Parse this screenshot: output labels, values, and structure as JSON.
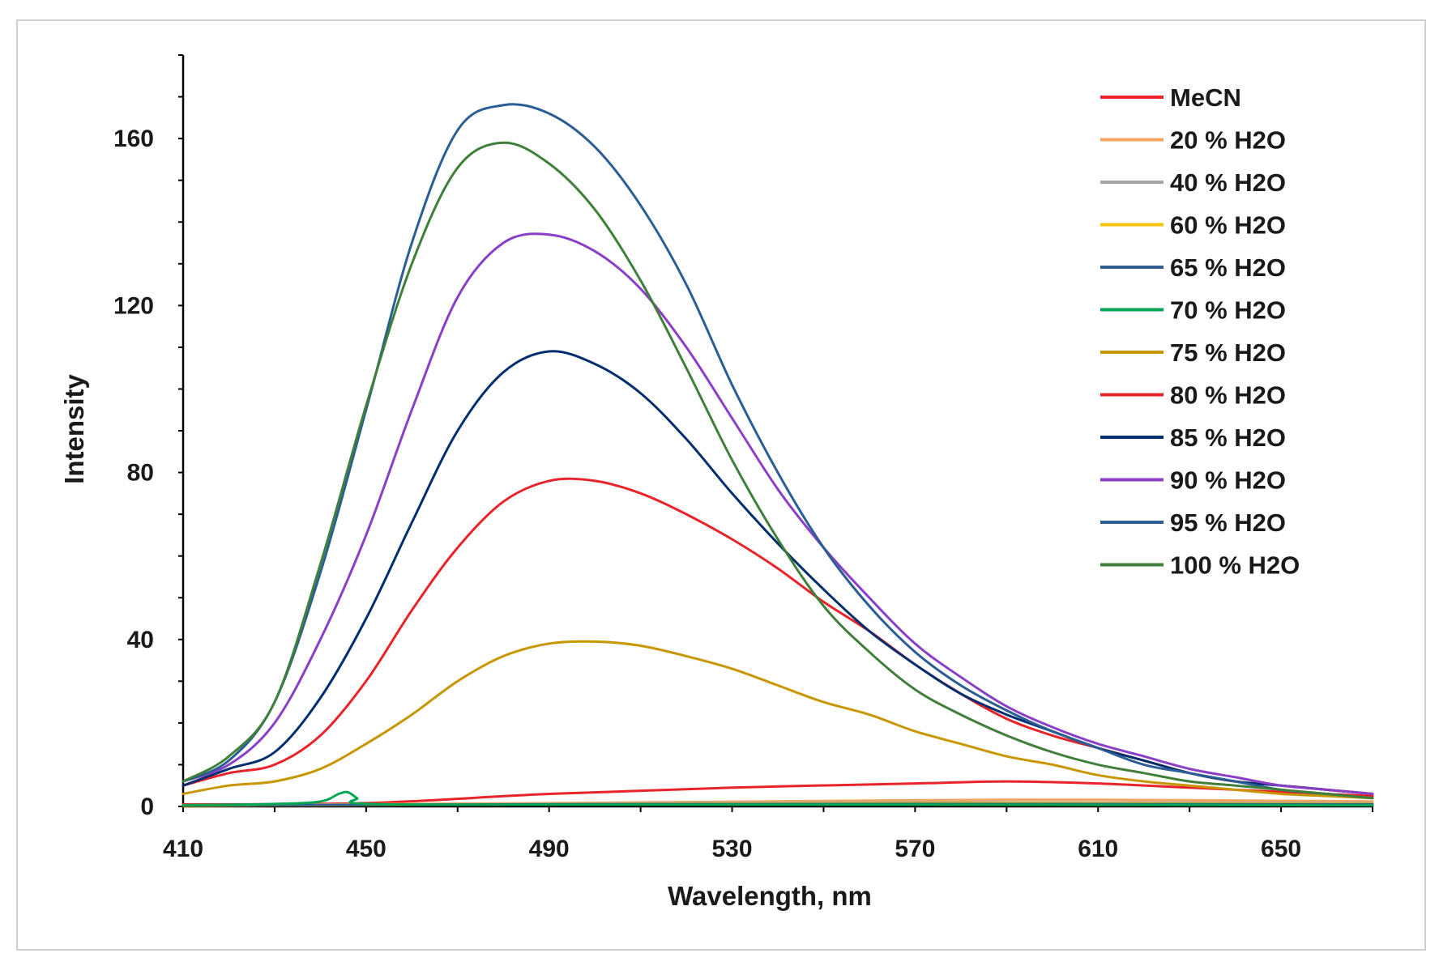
{
  "chart_data": {
    "type": "line",
    "xlabel": "Wavelength, nm",
    "ylabel": "Intensity",
    "xlim": [
      410,
      670
    ],
    "ylim": [
      0,
      180
    ],
    "x_ticks": [
      410,
      450,
      490,
      530,
      570,
      610,
      650
    ],
    "y_ticks": [
      0,
      40,
      80,
      120,
      160
    ],
    "grid": false,
    "legend_position": "top-right",
    "series": [
      {
        "name": "MeCN",
        "color": "#e8232a",
        "points": [
          [
            410,
            0.5
          ],
          [
            450,
            0.8
          ],
          [
            490,
            3
          ],
          [
            530,
            4.5
          ],
          [
            570,
            5.5
          ],
          [
            590,
            6
          ],
          [
            610,
            5.5
          ],
          [
            630,
            4.5
          ],
          [
            650,
            3.5
          ],
          [
            670,
            2.5
          ]
        ]
      },
      {
        "name": "20 % H2O",
        "color": "#f4a460",
        "points": [
          [
            410,
            0.3
          ],
          [
            490,
            0.8
          ],
          [
            570,
            1.5
          ],
          [
            610,
            1.6
          ],
          [
            670,
            1.2
          ]
        ]
      },
      {
        "name": "40 % H2O",
        "color": "#a6a6a6",
        "points": [
          [
            410,
            0.2
          ],
          [
            490,
            0.6
          ],
          [
            570,
            1.0
          ],
          [
            670,
            0.8
          ]
        ]
      },
      {
        "name": "60 % H2O",
        "color": "#f5c400",
        "points": [
          [
            410,
            0.2
          ],
          [
            490,
            0.5
          ],
          [
            570,
            0.8
          ],
          [
            670,
            0.6
          ]
        ]
      },
      {
        "name": "65 % H2O",
        "color": "#2e5f8f",
        "points": [
          [
            410,
            0.3
          ],
          [
            490,
            0.5
          ],
          [
            570,
            0.6
          ],
          [
            670,
            0.5
          ]
        ]
      },
      {
        "name": "70 % H2O",
        "color": "#00a651",
        "points": [
          [
            410,
            0.3
          ],
          [
            430,
            0.6
          ],
          [
            440,
            1.2
          ],
          [
            444,
            3
          ],
          [
            446,
            3.4
          ],
          [
            448,
            2
          ],
          [
            450,
            0.6
          ],
          [
            490,
            0.4
          ],
          [
            570,
            0.4
          ],
          [
            670,
            0.3
          ]
        ]
      },
      {
        "name": "75 % H2O",
        "color": "#c89700",
        "points": [
          [
            410,
            3
          ],
          [
            420,
            5
          ],
          [
            430,
            6
          ],
          [
            440,
            9
          ],
          [
            450,
            15
          ],
          [
            460,
            22
          ],
          [
            470,
            30
          ],
          [
            480,
            36
          ],
          [
            490,
            39
          ],
          [
            500,
            39.5
          ],
          [
            510,
            38.5
          ],
          [
            520,
            36
          ],
          [
            530,
            33
          ],
          [
            540,
            29
          ],
          [
            550,
            25
          ],
          [
            560,
            22
          ],
          [
            570,
            18
          ],
          [
            580,
            15
          ],
          [
            590,
            12
          ],
          [
            600,
            10
          ],
          [
            610,
            7.5
          ],
          [
            620,
            6
          ],
          [
            630,
            5
          ],
          [
            640,
            4
          ],
          [
            650,
            3
          ],
          [
            660,
            2.5
          ],
          [
            670,
            2
          ]
        ]
      },
      {
        "name": "80 % H2O",
        "color": "#e8232a",
        "points": [
          [
            410,
            5
          ],
          [
            420,
            8
          ],
          [
            430,
            10
          ],
          [
            440,
            17
          ],
          [
            450,
            30
          ],
          [
            460,
            47
          ],
          [
            470,
            62
          ],
          [
            480,
            73
          ],
          [
            490,
            78
          ],
          [
            500,
            78
          ],
          [
            510,
            75
          ],
          [
            520,
            70
          ],
          [
            530,
            64
          ],
          [
            540,
            57
          ],
          [
            550,
            49
          ],
          [
            560,
            42
          ],
          [
            570,
            34
          ],
          [
            580,
            27
          ],
          [
            590,
            21
          ],
          [
            600,
            17
          ],
          [
            610,
            14
          ],
          [
            620,
            11
          ],
          [
            630,
            8
          ],
          [
            640,
            6
          ],
          [
            650,
            5
          ],
          [
            660,
            4
          ],
          [
            670,
            3
          ]
        ]
      },
      {
        "name": "85 % H2O",
        "color": "#002e6e",
        "points": [
          [
            410,
            5
          ],
          [
            420,
            9
          ],
          [
            430,
            13
          ],
          [
            440,
            26
          ],
          [
            450,
            45
          ],
          [
            460,
            68
          ],
          [
            470,
            90
          ],
          [
            480,
            104
          ],
          [
            490,
            109
          ],
          [
            500,
            106
          ],
          [
            510,
            99
          ],
          [
            520,
            88
          ],
          [
            530,
            75
          ],
          [
            540,
            63
          ],
          [
            550,
            52
          ],
          [
            560,
            42
          ],
          [
            570,
            34
          ],
          [
            580,
            27
          ],
          [
            590,
            22
          ],
          [
            600,
            18
          ],
          [
            610,
            14
          ],
          [
            620,
            11
          ],
          [
            630,
            8
          ],
          [
            640,
            6
          ],
          [
            650,
            5
          ],
          [
            660,
            4
          ],
          [
            670,
            3
          ]
        ]
      },
      {
        "name": "90 % H2O",
        "color": "#8b3fc6",
        "points": [
          [
            410,
            6
          ],
          [
            420,
            10
          ],
          [
            430,
            20
          ],
          [
            440,
            40
          ],
          [
            450,
            65
          ],
          [
            460,
            95
          ],
          [
            470,
            122
          ],
          [
            480,
            135
          ],
          [
            490,
            137
          ],
          [
            500,
            133
          ],
          [
            510,
            124
          ],
          [
            520,
            110
          ],
          [
            530,
            93
          ],
          [
            540,
            76
          ],
          [
            550,
            62
          ],
          [
            560,
            50
          ],
          [
            570,
            39
          ],
          [
            580,
            31
          ],
          [
            590,
            24
          ],
          [
            600,
            19
          ],
          [
            610,
            15
          ],
          [
            620,
            12
          ],
          [
            630,
            9
          ],
          [
            640,
            7
          ],
          [
            650,
            5
          ],
          [
            660,
            4
          ],
          [
            670,
            3
          ]
        ]
      },
      {
        "name": "95 % H2O",
        "color": "#2a5e94",
        "points": [
          [
            410,
            6
          ],
          [
            420,
            11
          ],
          [
            430,
            25
          ],
          [
            440,
            56
          ],
          [
            450,
            95
          ],
          [
            460,
            135
          ],
          [
            470,
            162
          ],
          [
            480,
            168
          ],
          [
            490,
            166
          ],
          [
            500,
            158
          ],
          [
            510,
            144
          ],
          [
            520,
            125
          ],
          [
            530,
            101
          ],
          [
            540,
            80
          ],
          [
            550,
            62
          ],
          [
            560,
            48
          ],
          [
            570,
            37
          ],
          [
            580,
            29
          ],
          [
            590,
            23
          ],
          [
            600,
            18
          ],
          [
            610,
            14
          ],
          [
            620,
            10
          ],
          [
            630,
            8
          ],
          [
            640,
            6
          ],
          [
            650,
            4
          ],
          [
            660,
            3
          ],
          [
            670,
            2
          ]
        ]
      },
      {
        "name": "100 % H2O",
        "color": "#3f7f3a",
        "points": [
          [
            410,
            6
          ],
          [
            420,
            12
          ],
          [
            430,
            25
          ],
          [
            440,
            58
          ],
          [
            450,
            96
          ],
          [
            460,
            130
          ],
          [
            470,
            153
          ],
          [
            480,
            159
          ],
          [
            490,
            154
          ],
          [
            500,
            143
          ],
          [
            510,
            126
          ],
          [
            520,
            105
          ],
          [
            530,
            83
          ],
          [
            540,
            64
          ],
          [
            550,
            48
          ],
          [
            560,
            37
          ],
          [
            570,
            28
          ],
          [
            580,
            22
          ],
          [
            590,
            17
          ],
          [
            600,
            13
          ],
          [
            610,
            10
          ],
          [
            620,
            8
          ],
          [
            630,
            6
          ],
          [
            640,
            5
          ],
          [
            650,
            4
          ],
          [
            660,
            3
          ],
          [
            670,
            2
          ]
        ]
      }
    ]
  }
}
